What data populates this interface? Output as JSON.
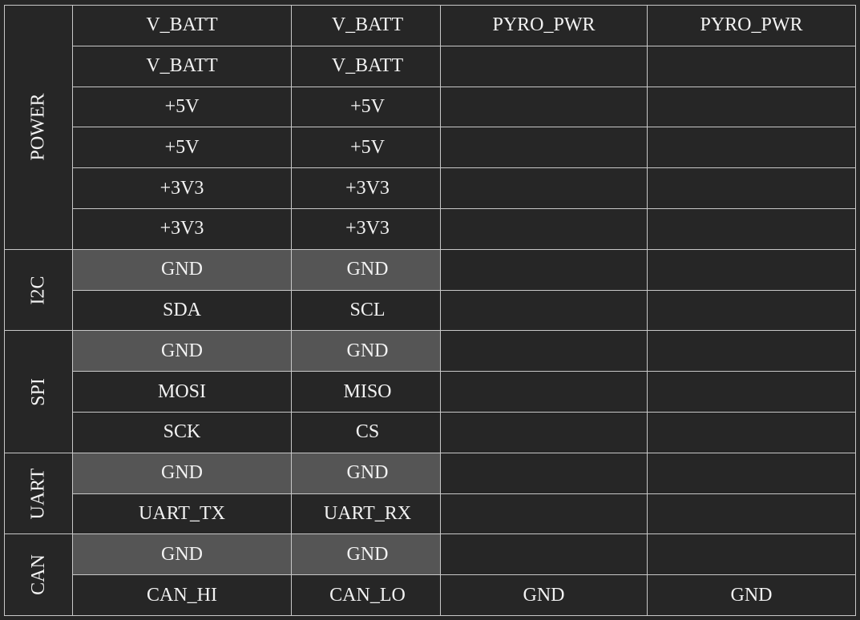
{
  "left_table": {
    "groups": [
      {
        "label": "POWER",
        "rows": [
          {
            "a": "V_BATT",
            "b": "V_BATT",
            "highlight": false
          },
          {
            "a": "V_BATT",
            "b": "V_BATT",
            "highlight": false
          },
          {
            "a": "+5V",
            "b": "+5V",
            "highlight": false
          },
          {
            "a": "+5V",
            "b": "+5V",
            "highlight": false
          },
          {
            "a": "+3V3",
            "b": "+3V3",
            "highlight": false
          },
          {
            "a": "+3V3",
            "b": "+3V3",
            "highlight": false
          }
        ]
      },
      {
        "label": "I2C",
        "rows": [
          {
            "a": "GND",
            "b": "GND",
            "highlight": true
          },
          {
            "a": "SDA",
            "b": "SCL",
            "highlight": false
          }
        ]
      },
      {
        "label": "SPI",
        "rows": [
          {
            "a": "GND",
            "b": "GND",
            "highlight": true
          },
          {
            "a": "MOSI",
            "b": "MISO",
            "highlight": false
          },
          {
            "a": "SCK",
            "b": "CS",
            "highlight": false
          }
        ]
      },
      {
        "label": "UART",
        "rows": [
          {
            "a": "GND",
            "b": "GND",
            "highlight": true
          },
          {
            "a": "UART_TX",
            "b": "UART_RX",
            "highlight": false
          }
        ]
      },
      {
        "label": "CAN",
        "rows": [
          {
            "a": "GND",
            "b": "GND",
            "highlight": true
          },
          {
            "a": "CAN_HI",
            "b": "CAN_LO",
            "highlight": false
          }
        ]
      }
    ]
  },
  "right_table": {
    "rows": [
      {
        "a": "PYRO_PWR",
        "b": "PYRO_PWR"
      },
      {
        "a": "",
        "b": ""
      },
      {
        "a": "",
        "b": ""
      },
      {
        "a": "",
        "b": ""
      },
      {
        "a": "",
        "b": ""
      },
      {
        "a": "",
        "b": ""
      },
      {
        "a": "",
        "b": ""
      },
      {
        "a": "",
        "b": ""
      },
      {
        "a": "",
        "b": ""
      },
      {
        "a": "",
        "b": ""
      },
      {
        "a": "",
        "b": ""
      },
      {
        "a": "",
        "b": ""
      },
      {
        "a": "",
        "b": ""
      },
      {
        "a": "",
        "b": ""
      },
      {
        "a": "GND",
        "b": "GND"
      }
    ]
  },
  "colors": {
    "background": "#262626",
    "highlight": "#555555",
    "border": "#c8c8c8",
    "text": "#f2f2f2"
  }
}
